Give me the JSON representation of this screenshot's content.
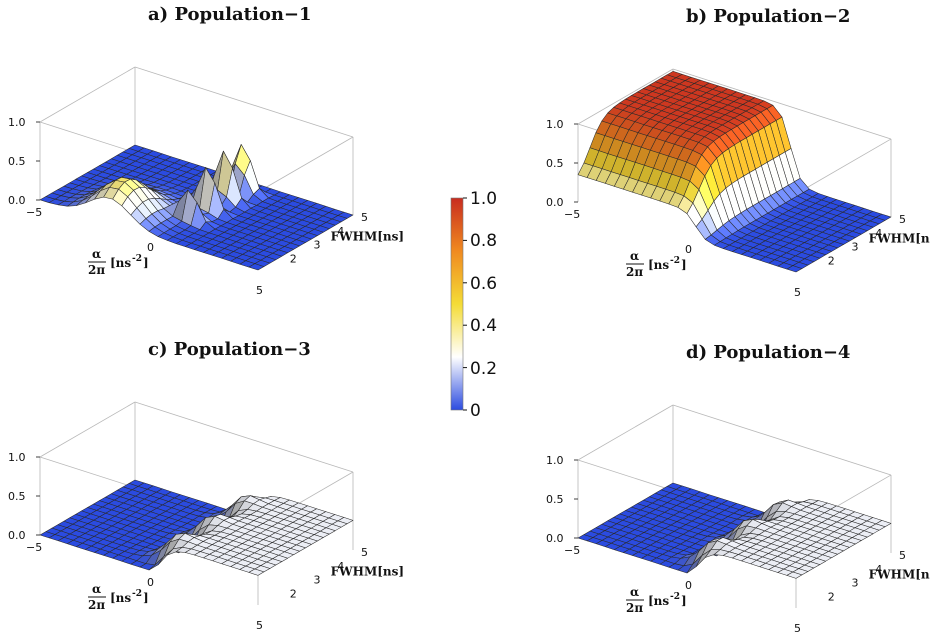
{
  "chart_data": [
    {
      "type": "surface",
      "title": "a) Population−1",
      "xlabel_num": "α",
      "xlabel_den": "2π",
      "xlabel_unit": "[ns",
      "xlabel_exp": "-2",
      "xlabel_close": "]",
      "ylabel": "FWHM[ns]",
      "x_ticks": [
        "−5",
        "0",
        "5"
      ],
      "y_ticks": [
        "2",
        "3",
        "4",
        "5"
      ],
      "z_ticks": [
        "0.0",
        "0.5",
        "1.0"
      ],
      "xlim": [
        -5,
        5
      ],
      "ylim": [
        1,
        5
      ],
      "zlim": [
        0,
        1
      ],
      "description": "Sharp oscillating peaks near α/2π≈0, height rising with FWHM; broad bump near α/2π≈−2 at small FWHM; flat ≈0 elsewhere."
    },
    {
      "type": "surface",
      "title": "b) Population−2",
      "xlabel_num": "α",
      "xlabel_den": "2π",
      "xlabel_unit": "[ns",
      "xlabel_exp": "-2",
      "xlabel_close": "]",
      "ylabel": "FWHM[ns]",
      "x_ticks": [
        "−5",
        "0",
        "5"
      ],
      "y_ticks": [
        "2",
        "3",
        "4",
        "5"
      ],
      "z_ticks": [
        "0.0",
        "0.5",
        "1.0"
      ],
      "xlim": [
        -5,
        5
      ],
      "ylim": [
        1,
        5
      ],
      "zlim": [
        0,
        1
      ],
      "description": "Plateau ≈1 for α/2π < 0 at large FWHM, dropping to ≈0 for positive α/2π."
    },
    {
      "type": "surface",
      "title": "c) Population−3",
      "xlabel_num": "α",
      "xlabel_den": "2π",
      "xlabel_unit": "[ns",
      "xlabel_exp": "-2",
      "xlabel_close": "]",
      "ylabel": "FWHM[ns]",
      "x_ticks": [
        "−5",
        "0",
        "5"
      ],
      "y_ticks": [
        "2",
        "3",
        "4",
        "5"
      ],
      "z_ticks": [
        "0.0",
        "0.5",
        "1.0"
      ],
      "xlim": [
        -5,
        5
      ],
      "ylim": [
        1,
        5
      ],
      "zlim": [
        0,
        1
      ],
      "description": "Low (≈0) for α/2π < 0; ≈0.4 for α/2π > 0 with ripples near α/2π≈0."
    },
    {
      "type": "surface",
      "title": "d) Population−4",
      "xlabel_num": "α",
      "xlabel_den": "2π",
      "xlabel_unit": "[ns",
      "xlabel_exp": "-2",
      "xlabel_close": "]",
      "ylabel": "FWHM[ns]",
      "x_ticks": [
        "−5",
        "0",
        "5"
      ],
      "y_ticks": [
        "2",
        "3",
        "4",
        "5"
      ],
      "z_ticks": [
        "0.0",
        "0.5",
        "1.0"
      ],
      "xlim": [
        -5,
        5
      ],
      "ylim": [
        1,
        5
      ],
      "zlim": [
        0,
        1
      ],
      "description": "Low (≈0) for α/2π < 0; ≈0.4 for α/2π > 0 with ripples near α/2π≈0."
    }
  ],
  "colorbar": {
    "ticks": [
      "1.0",
      "0.8",
      "0.6",
      "0.4",
      "0.2",
      "0"
    ],
    "values": [
      1.0,
      0.8,
      0.6,
      0.4,
      0.2,
      0.0
    ],
    "range": [
      0,
      1
    ],
    "colors": [
      "#2b4be0",
      "#ffffff",
      "#f4dc36",
      "#f08a20",
      "#c82c20"
    ]
  }
}
